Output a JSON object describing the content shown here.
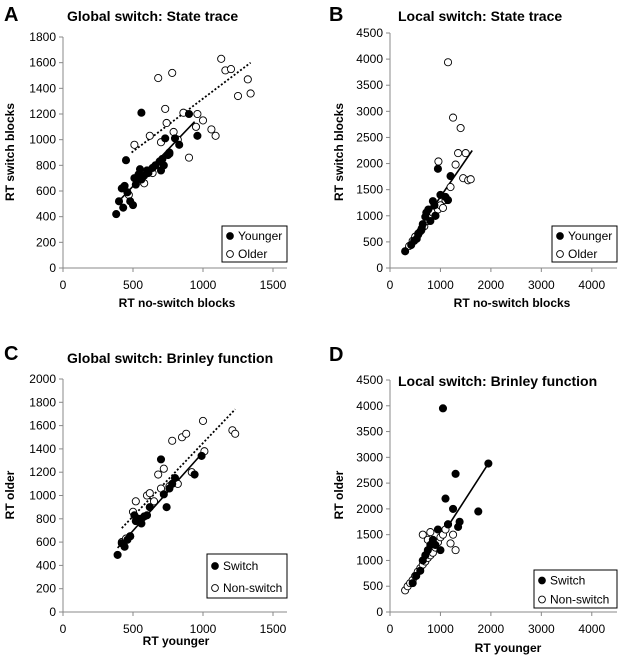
{
  "chart_data": [
    {
      "panel_letter": "A",
      "type": "scatter",
      "title": "Global switch: State trace",
      "xlabel": "RT no-switch blocks",
      "ylabel": "RT switch blocks",
      "xlim": [
        0,
        1600
      ],
      "ylim": [
        0,
        1800
      ],
      "xticks": [
        0,
        500,
        1000,
        1500
      ],
      "yticks": [
        0,
        200,
        400,
        600,
        800,
        1000,
        1200,
        1400,
        1600,
        1800
      ],
      "legend_position": "bottom-right",
      "series": [
        {
          "name": "Younger",
          "marker": "filled",
          "points": [
            [
              380,
              420
            ],
            [
              400,
              520
            ],
            [
              420,
              620
            ],
            [
              430,
              470
            ],
            [
              440,
              640
            ],
            [
              450,
              840
            ],
            [
              460,
              590
            ],
            [
              480,
              520
            ],
            [
              500,
              490
            ],
            [
              510,
              700
            ],
            [
              520,
              650
            ],
            [
              540,
              730
            ],
            [
              550,
              770
            ],
            [
              560,
              690
            ],
            [
              560,
              1210
            ],
            [
              580,
              720
            ],
            [
              600,
              760
            ],
            [
              610,
              740
            ],
            [
              640,
              780
            ],
            [
              660,
              800
            ],
            [
              690,
              830
            ],
            [
              700,
              760
            ],
            [
              710,
              850
            ],
            [
              720,
              800
            ],
            [
              730,
              1010
            ],
            [
              750,
              880
            ],
            [
              760,
              900
            ],
            [
              800,
              1010
            ],
            [
              830,
              960
            ],
            [
              900,
              1200
            ],
            [
              960,
              1030
            ]
          ]
        },
        {
          "name": "Older",
          "marker": "open",
          "points": [
            [
              470,
              570
            ],
            [
              510,
              960
            ],
            [
              560,
              680
            ],
            [
              580,
              660
            ],
            [
              620,
              1030
            ],
            [
              640,
              740
            ],
            [
              680,
              1480
            ],
            [
              700,
              980
            ],
            [
              730,
              1240
            ],
            [
              740,
              1130
            ],
            [
              760,
              890
            ],
            [
              780,
              1520
            ],
            [
              790,
              1060
            ],
            [
              820,
              1000
            ],
            [
              860,
              1210
            ],
            [
              900,
              860
            ],
            [
              950,
              1100
            ],
            [
              960,
              1200
            ],
            [
              1000,
              1150
            ],
            [
              1060,
              1080
            ],
            [
              1090,
              1030
            ],
            [
              1130,
              1630
            ],
            [
              1160,
              1540
            ],
            [
              1200,
              1550
            ],
            [
              1250,
              1340
            ],
            [
              1320,
              1470
            ],
            [
              1340,
              1360
            ]
          ]
        }
      ],
      "fit_lines": [
        {
          "series": "Younger",
          "style": "solid",
          "from": [
            380,
            500
          ],
          "to": [
            940,
            1140
          ]
        },
        {
          "series": "Older",
          "style": "dotted",
          "from": [
            490,
            900
          ],
          "to": [
            1340,
            1600
          ]
        }
      ]
    },
    {
      "panel_letter": "B",
      "type": "scatter",
      "title": "Local switch: State trace",
      "xlabel": "RT no-switch blocks",
      "ylabel": "RT switch blocks",
      "xlim": [
        0,
        4500
      ],
      "ylim": [
        0,
        4500
      ],
      "xticks": [
        0,
        1000,
        2000,
        3000,
        4000
      ],
      "yticks": [
        0,
        500,
        1000,
        1500,
        2000,
        2500,
        3000,
        3500,
        4000,
        4500
      ],
      "legend_position": "bottom-right",
      "series": [
        {
          "name": "Younger",
          "marker": "filled",
          "points": [
            [
              300,
              320
            ],
            [
              420,
              440
            ],
            [
              480,
              520
            ],
            [
              530,
              560
            ],
            [
              560,
              640
            ],
            [
              600,
              700
            ],
            [
              630,
              760
            ],
            [
              650,
              840
            ],
            [
              700,
              980
            ],
            [
              720,
              1060
            ],
            [
              760,
              1120
            ],
            [
              800,
              900
            ],
            [
              850,
              1280
            ],
            [
              880,
              1200
            ],
            [
              900,
              1000
            ],
            [
              950,
              1900
            ],
            [
              1000,
              1400
            ],
            [
              1100,
              1360
            ],
            [
              1150,
              1300
            ],
            [
              1200,
              1760
            ]
          ]
        },
        {
          "name": "Older",
          "marker": "open",
          "points": [
            [
              380,
              420
            ],
            [
              450,
              520
            ],
            [
              500,
              600
            ],
            [
              560,
              660
            ],
            [
              620,
              720
            ],
            [
              680,
              800
            ],
            [
              750,
              900
            ],
            [
              800,
              960
            ],
            [
              850,
              1060
            ],
            [
              900,
              1000
            ],
            [
              950,
              1120
            ],
            [
              960,
              2040
            ],
            [
              1000,
              1200
            ],
            [
              1050,
              1150
            ],
            [
              1100,
              1300
            ],
            [
              1150,
              3940
            ],
            [
              1200,
              1550
            ],
            [
              1250,
              2880
            ],
            [
              1300,
              1980
            ],
            [
              1350,
              2200
            ],
            [
              1400,
              2680
            ],
            [
              1450,
              1720
            ],
            [
              1500,
              2200
            ],
            [
              1550,
              1680
            ],
            [
              1600,
              1700
            ]
          ]
        }
      ],
      "fit_lines": [
        {
          "series": "Younger",
          "style": "solid",
          "from": [
            300,
            380
          ],
          "to": [
            1630,
            2250
          ]
        }
      ]
    },
    {
      "panel_letter": "C",
      "type": "scatter",
      "title": "Global switch: Brinley function",
      "xlabel": "RT younger",
      "ylabel": "RT older",
      "xlim": [
        0,
        1600
      ],
      "ylim": [
        0,
        2000
      ],
      "xticks": [
        0,
        500,
        1000,
        1500
      ],
      "yticks": [
        0,
        200,
        400,
        600,
        800,
        1000,
        1200,
        1400,
        1600,
        1800,
        2000
      ],
      "legend_position": "bottom-right",
      "series": [
        {
          "name": "Switch",
          "marker": "filled",
          "points": [
            [
              390,
              490
            ],
            [
              420,
              590
            ],
            [
              440,
              560
            ],
            [
              460,
              620
            ],
            [
              480,
              650
            ],
            [
              510,
              830
            ],
            [
              520,
              780
            ],
            [
              540,
              800
            ],
            [
              560,
              760
            ],
            [
              580,
              820
            ],
            [
              600,
              830
            ],
            [
              620,
              900
            ],
            [
              700,
              1310
            ],
            [
              720,
              1010
            ],
            [
              740,
              900
            ],
            [
              760,
              1060
            ],
            [
              780,
              1100
            ],
            [
              800,
              1150
            ],
            [
              940,
              1180
            ],
            [
              990,
              1340
            ]
          ]
        },
        {
          "name": "Non-switch",
          "marker": "open",
          "points": [
            [
              420,
              600
            ],
            [
              450,
              630
            ],
            [
              480,
              650
            ],
            [
              500,
              860
            ],
            [
              520,
              950
            ],
            [
              560,
              800
            ],
            [
              600,
              1000
            ],
            [
              620,
              1020
            ],
            [
              650,
              950
            ],
            [
              680,
              1180
            ],
            [
              700,
              1060
            ],
            [
              720,
              1230
            ],
            [
              760,
              1080
            ],
            [
              780,
              1470
            ],
            [
              820,
              1100
            ],
            [
              850,
              1500
            ],
            [
              880,
              1530
            ],
            [
              920,
              1200
            ],
            [
              1000,
              1640
            ],
            [
              1010,
              1380
            ],
            [
              1210,
              1560
            ],
            [
              1230,
              1530
            ]
          ]
        }
      ],
      "fit_lines": [
        {
          "series": "Switch",
          "style": "solid",
          "from": [
            390,
            550
          ],
          "to": [
            1000,
            1370
          ]
        },
        {
          "series": "Non-switch",
          "style": "dotted",
          "from": [
            420,
            720
          ],
          "to": [
            1230,
            1740
          ]
        }
      ]
    },
    {
      "panel_letter": "D",
      "type": "scatter",
      "title": "Local switch: Brinley function",
      "xlabel": "RT younger",
      "ylabel": "RT older",
      "xlim": [
        0,
        4500
      ],
      "ylim": [
        0,
        4500
      ],
      "xticks": [
        0,
        1000,
        2000,
        3000,
        4000
      ],
      "yticks": [
        0,
        500,
        1000,
        1500,
        2000,
        2500,
        3000,
        3500,
        4000,
        4500
      ],
      "legend_position": "bottom-right",
      "series": [
        {
          "name": "Switch",
          "marker": "filled",
          "points": [
            [
              450,
              560
            ],
            [
              520,
              700
            ],
            [
              600,
              800
            ],
            [
              650,
              1000
            ],
            [
              700,
              1100
            ],
            [
              750,
              1200
            ],
            [
              800,
              1300
            ],
            [
              850,
              1400
            ],
            [
              900,
              1300
            ],
            [
              950,
              1600
            ],
            [
              1000,
              1200
            ],
            [
              1050,
              3950
            ],
            [
              1100,
              2200
            ],
            [
              1150,
              1700
            ],
            [
              1250,
              2000
            ],
            [
              1300,
              2680
            ],
            [
              1350,
              1650
            ],
            [
              1380,
              1750
            ],
            [
              1750,
              1950
            ],
            [
              1950,
              2880
            ]
          ]
        },
        {
          "name": "Non-switch",
          "marker": "open",
          "points": [
            [
              300,
              420
            ],
            [
              350,
              500
            ],
            [
              400,
              560
            ],
            [
              450,
              620
            ],
            [
              500,
              700
            ],
            [
              550,
              780
            ],
            [
              600,
              850
            ],
            [
              650,
              920
            ],
            [
              700,
              980
            ],
            [
              750,
              1050
            ],
            [
              800,
              1100
            ],
            [
              850,
              1150
            ],
            [
              900,
              1250
            ],
            [
              950,
              1350
            ],
            [
              1000,
              1450
            ],
            [
              1050,
              1500
            ],
            [
              1100,
              1600
            ],
            [
              1150,
              1700
            ],
            [
              1200,
              1330
            ],
            [
              1250,
              1500
            ],
            [
              1300,
              1200
            ],
            [
              750,
              1400
            ],
            [
              650,
              1500
            ],
            [
              800,
              1550
            ]
          ]
        }
      ],
      "fit_lines": [
        {
          "series": "Switch",
          "style": "solid",
          "from": [
            330,
            420
          ],
          "to": [
            1950,
            2880
          ]
        }
      ]
    }
  ]
}
